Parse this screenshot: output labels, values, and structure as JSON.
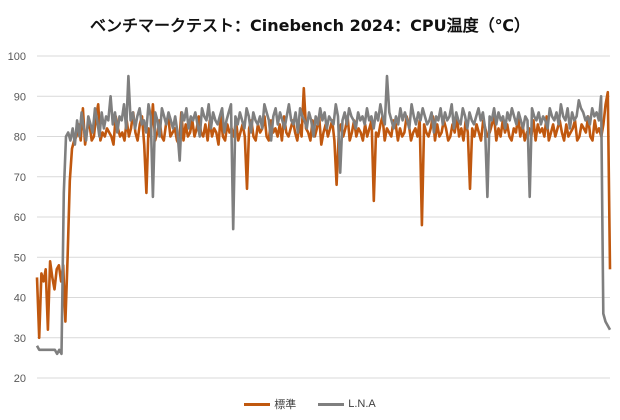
{
  "chart_data": {
    "type": "line",
    "title": "ベンチマークテスト：Cinebench 2024：CPU温度（℃）",
    "xlabel": "",
    "ylabel": "",
    "ylim": [
      20,
      100
    ],
    "yticks": [
      "100",
      "90",
      "80",
      "70",
      "60",
      "50",
      "40",
      "30",
      "20"
    ],
    "grid": true,
    "legend_position": "bottom",
    "series": [
      {
        "name": "標準",
        "color": "#c0580f",
        "values": [
          45,
          30,
          46,
          44,
          47,
          32,
          49,
          45,
          42,
          47,
          48,
          44,
          48,
          34,
          50,
          69,
          77,
          79,
          80,
          83,
          79,
          87,
          78,
          82,
          83,
          79,
          80,
          85,
          88,
          79,
          81,
          80,
          82,
          81,
          80,
          78,
          85,
          82,
          80,
          81,
          79,
          84,
          80,
          82,
          86,
          81,
          79,
          83,
          85,
          78,
          66,
          82,
          80,
          88,
          79,
          81,
          84,
          80,
          79,
          83,
          85,
          80,
          81,
          82,
          79,
          78,
          86,
          79,
          83,
          80,
          81,
          84,
          80,
          82,
          85,
          81,
          80,
          83,
          79,
          84,
          80,
          82,
          81,
          78,
          85,
          80,
          79,
          83,
          81,
          82,
          80,
          84,
          79,
          81,
          83,
          80,
          67,
          82,
          84,
          80,
          79,
          83,
          81,
          82,
          85,
          80,
          79,
          84,
          81,
          82,
          80,
          83,
          79,
          85,
          81,
          80,
          82,
          84,
          81,
          79,
          83,
          80,
          92,
          82,
          81,
          79,
          84,
          80,
          82,
          85,
          78,
          81,
          83,
          80,
          82,
          84,
          79,
          68,
          81,
          83,
          80,
          82,
          85,
          79,
          81,
          84,
          80,
          82,
          81,
          79,
          83,
          80,
          82,
          84,
          64,
          81,
          80,
          83,
          85,
          79,
          82,
          81,
          80,
          84,
          83,
          79,
          82,
          80,
          81,
          85,
          83,
          79,
          81,
          82,
          80,
          84,
          58,
          83,
          81,
          80,
          82,
          85,
          79,
          83,
          80,
          81,
          84,
          82,
          79,
          80,
          83,
          81,
          85,
          80,
          82,
          79,
          84,
          81,
          67,
          82,
          80,
          83,
          81,
          79,
          84,
          82,
          80,
          81,
          83,
          85,
          79,
          82,
          80,
          84,
          81,
          83,
          80,
          79,
          82,
          81,
          85,
          80,
          83,
          79,
          81,
          82,
          80,
          84,
          79,
          83,
          81,
          82,
          80,
          85,
          79,
          81,
          83,
          80,
          82,
          84,
          81,
          79,
          83,
          80,
          81,
          82,
          84,
          79,
          80,
          83,
          82,
          81,
          85,
          80,
          79,
          84,
          81,
          82,
          80,
          83,
          88,
          91,
          47
        ]
      },
      {
        "name": "L.N.A",
        "color": "#7f7f7f",
        "values": [
          28,
          27,
          27,
          27,
          27,
          27,
          27,
          27,
          27,
          26,
          27,
          26,
          66,
          80,
          81,
          79,
          82,
          78,
          84,
          80,
          86,
          82,
          79,
          85,
          83,
          81,
          87,
          84,
          80,
          86,
          82,
          85,
          84,
          90,
          83,
          86,
          81,
          85,
          84,
          88,
          82,
          95,
          84,
          86,
          82,
          85,
          87,
          83,
          84,
          81,
          88,
          85,
          65,
          86,
          84,
          80,
          87,
          85,
          83,
          86,
          84,
          82,
          85,
          81,
          74,
          86,
          84,
          87,
          82,
          85,
          84,
          86,
          83,
          80,
          87,
          85,
          84,
          88,
          82,
          86,
          84,
          83,
          85,
          87,
          81,
          84,
          86,
          88,
          57,
          85,
          83,
          86,
          84,
          82,
          87,
          85,
          81,
          86,
          84,
          83,
          85,
          82,
          88,
          86,
          84,
          79,
          85,
          87,
          83,
          86,
          84,
          82,
          85,
          88,
          84,
          83,
          86,
          81,
          87,
          85,
          84,
          82,
          86,
          84,
          80,
          85,
          83,
          87,
          84,
          86,
          82,
          85,
          84,
          83,
          88,
          85,
          71,
          84,
          86,
          83,
          87,
          85,
          84,
          82,
          86,
          84,
          85,
          83,
          87,
          84,
          85,
          82,
          86,
          84,
          88,
          85,
          83,
          95,
          86,
          84,
          82,
          85,
          83,
          87,
          84,
          86,
          84,
          82,
          88,
          85,
          83,
          86,
          84,
          87,
          85,
          83,
          84,
          86,
          81,
          85,
          84,
          87,
          83,
          86,
          84,
          85,
          88,
          82,
          86,
          84,
          83,
          87,
          85,
          82,
          86,
          84,
          83,
          85,
          87,
          84,
          86,
          82,
          65,
          85,
          84,
          87,
          83,
          86,
          84,
          85,
          82,
          86,
          84,
          87,
          85,
          83,
          86,
          84,
          82,
          85,
          84,
          65,
          87,
          85,
          84,
          86,
          83,
          85,
          84,
          82,
          87,
          85,
          84,
          86,
          83,
          88,
          85,
          84,
          87,
          82,
          86,
          84,
          85,
          89,
          87,
          86,
          84,
          85,
          83,
          87,
          85,
          86,
          84,
          90,
          36,
          34,
          33,
          32
        ]
      }
    ]
  }
}
